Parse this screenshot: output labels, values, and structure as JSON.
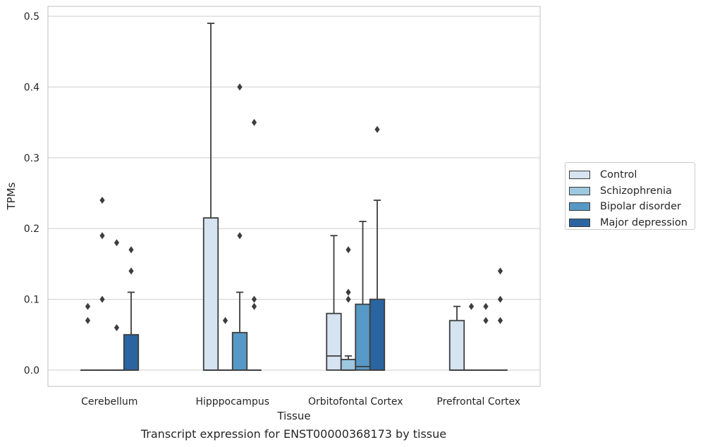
{
  "chart_data": {
    "type": "box",
    "xlabel": "Tissue",
    "ylabel": "TPMs",
    "ylim": [
      -0.023,
      0.514
    ],
    "yticks": [
      "0.0",
      "0.1",
      "0.2",
      "0.3",
      "0.4",
      "0.5"
    ],
    "grid": true,
    "legend_position": "right",
    "categories": [
      "Cerebellum",
      "Hipppocampus",
      "Orbitofontal Cortex",
      "Prefrontal Cortex"
    ],
    "series": [
      {
        "name": "Control",
        "color": "#d6e3f1",
        "boxes": [
          {
            "min": 0,
            "q1": 0,
            "median": 0,
            "q3": 0,
            "max": 0,
            "outliers": [
              0.09,
              0.07
            ]
          },
          {
            "min": 0,
            "q1": 0,
            "median": 0,
            "q3": 0.215,
            "max": 0.49,
            "outliers": []
          },
          {
            "min": 0,
            "q1": 0,
            "median": 0.02,
            "q3": 0.08,
            "max": 0.19,
            "outliers": []
          },
          {
            "min": 0,
            "q1": 0,
            "median": 0,
            "q3": 0.07,
            "max": 0.09,
            "outliers": []
          }
        ]
      },
      {
        "name": "Schizophrenia",
        "color": "#9ec7e0",
        "boxes": [
          {
            "min": 0,
            "q1": 0,
            "median": 0,
            "q3": 0,
            "max": 0,
            "outliers": [
              0.24,
              0.19,
              0.1
            ]
          },
          {
            "min": 0,
            "q1": 0,
            "median": 0,
            "q3": 0,
            "max": 0,
            "outliers": [
              0.07
            ]
          },
          {
            "min": 0,
            "q1": 0,
            "median": 0,
            "q3": 0.015,
            "max": 0.02,
            "outliers": [
              0.17,
              0.11,
              0.1
            ]
          },
          {
            "min": 0,
            "q1": 0,
            "median": 0,
            "q3": 0,
            "max": 0,
            "outliers": [
              0.09
            ]
          }
        ]
      },
      {
        "name": "Bipolar disorder",
        "color": "#5799c6",
        "boxes": [
          {
            "min": 0,
            "q1": 0,
            "median": 0,
            "q3": 0,
            "max": 0,
            "outliers": [
              0.18,
              0.06
            ]
          },
          {
            "min": 0,
            "q1": 0,
            "median": 0,
            "q3": 0.053,
            "max": 0.11,
            "outliers": [
              0.4,
              0.19
            ]
          },
          {
            "min": 0,
            "q1": 0,
            "median": 0.005,
            "q3": 0.093,
            "max": 0.21,
            "outliers": []
          },
          {
            "min": 0,
            "q1": 0,
            "median": 0,
            "q3": 0,
            "max": 0,
            "outliers": [
              0.09,
              0.07
            ]
          }
        ]
      },
      {
        "name": "Major depression",
        "color": "#2a65a1",
        "boxes": [
          {
            "min": 0,
            "q1": 0,
            "median": 0,
            "q3": 0.05,
            "max": 0.11,
            "outliers": [
              0.17,
              0.14
            ]
          },
          {
            "min": 0,
            "q1": 0,
            "median": 0,
            "q3": 0,
            "max": 0,
            "outliers": [
              0.35,
              0.1,
              0.09
            ]
          },
          {
            "min": 0,
            "q1": 0,
            "median": 0,
            "q3": 0.1,
            "max": 0.24,
            "outliers": [
              0.34
            ]
          },
          {
            "min": 0,
            "q1": 0,
            "median": 0,
            "q3": 0,
            "max": 0,
            "outliers": [
              0.14,
              0.1,
              0.07
            ]
          }
        ]
      }
    ]
  },
  "caption": "Transcript expression for ENST00000368173 by tissue"
}
